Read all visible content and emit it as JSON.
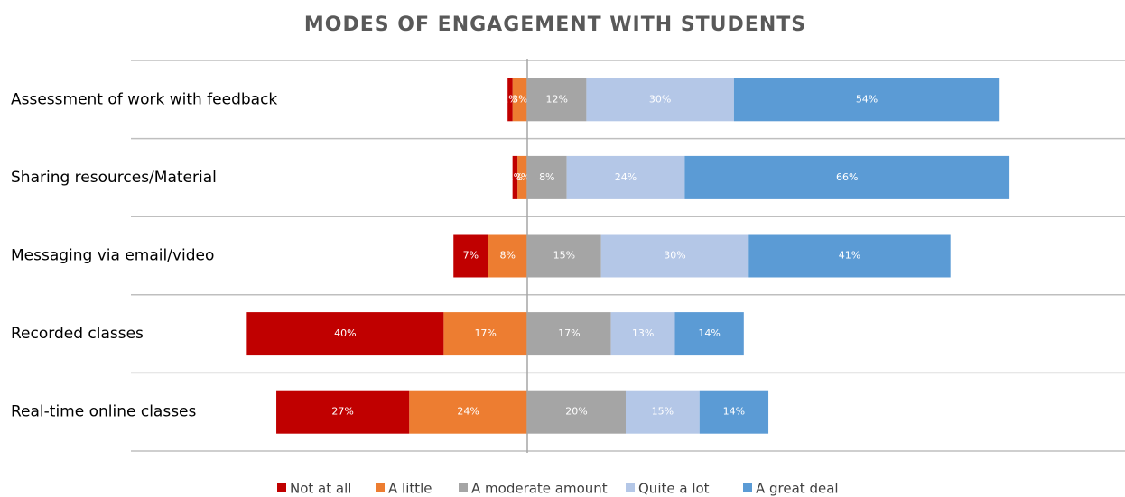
{
  "chart_data": {
    "type": "diverging_bar",
    "title": "MODES OF ENGAGEMENT WITH STUDENTS",
    "categories": [
      "Assessment  of work with feedback",
      "Sharing resources/Material",
      "Messaging via email/video",
      "Recorded  classes",
      "Real-time online classes"
    ],
    "series": [
      {
        "name": "Not at all",
        "color": "#c00000",
        "side": "left",
        "values": [
          1,
          1,
          7,
          40,
          27
        ]
      },
      {
        "name": "A little",
        "color": "#ed7d31",
        "side": "left",
        "values": [
          3,
          2,
          8,
          17,
          24
        ]
      },
      {
        "name": "A moderate amount",
        "color": "#a5a5a5",
        "side": "right",
        "values": [
          12,
          8,
          15,
          17,
          20
        ]
      },
      {
        "name": "Quite a lot",
        "color": "#b4c7e7",
        "side": "right",
        "values": [
          30,
          24,
          30,
          13,
          15
        ]
      },
      {
        "name": "A great deal",
        "color": "#5b9bd5",
        "side": "right",
        "values": [
          54,
          66,
          41,
          14,
          14
        ]
      }
    ],
    "value_labels": [
      [
        "1%",
        "1%",
        "7%",
        "40%",
        "27%"
      ],
      [
        "3%",
        "2%",
        "8%",
        "17%",
        "24%"
      ],
      [
        "12%",
        "8%",
        "15%",
        "17%",
        "20%"
      ],
      [
        "30%",
        "24%",
        "30%",
        "13%",
        "15%"
      ],
      [
        "54%",
        "66%",
        "41%",
        "14%",
        "14%"
      ]
    ]
  }
}
